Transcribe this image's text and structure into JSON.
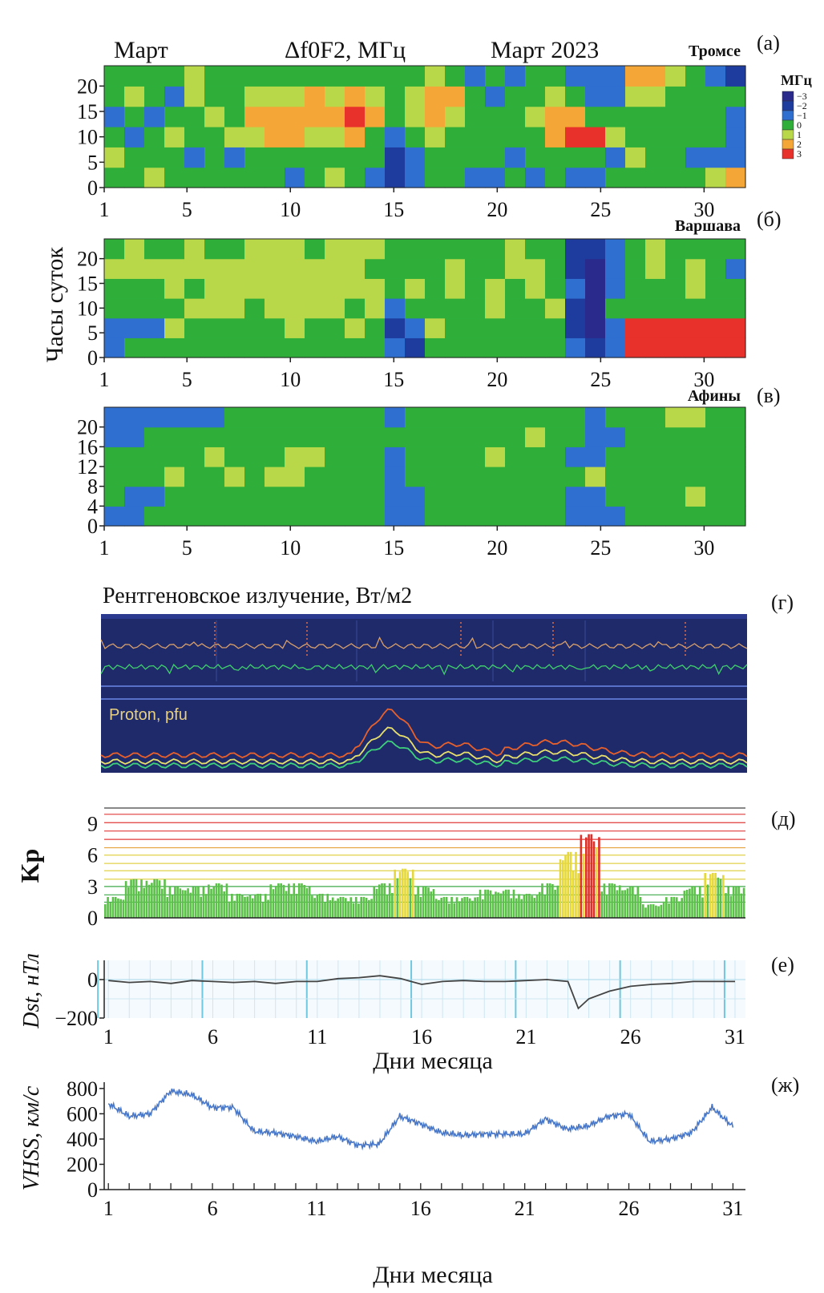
{
  "header": {
    "left": "Март",
    "center": "Δf0F2, МГц",
    "right": "Март 2023"
  },
  "colorbar": {
    "title": "МГц",
    "labels": [
      "−3",
      "−2",
      "−1",
      "0",
      "1",
      "2",
      "3"
    ],
    "colors": [
      "#2a2a8c",
      "#1e3c9e",
      "#2f6fd0",
      "#2fae3a",
      "#b8d84a",
      "#f4a636",
      "#e8312a"
    ]
  },
  "shared_ylabel": "Часы суток",
  "chart_data": [
    {
      "panel": "(а)",
      "station": "Тромсе",
      "type": "heatmap",
      "title": "Δf0F2, МГц",
      "x_ticks": [
        1,
        5,
        10,
        15,
        20,
        25,
        30
      ],
      "xlim": [
        1,
        32
      ],
      "y_ticks": [
        0,
        5,
        10,
        15,
        20
      ],
      "ylim": [
        0,
        24
      ],
      "value_range": [
        -3,
        3
      ],
      "rows_hours": [
        0,
        4,
        8,
        12,
        16,
        20
      ],
      "values_by_day_rows": [
        [
          0,
          1,
          0,
          -1,
          0,
          0
        ],
        [
          0,
          0,
          -1,
          0,
          1,
          0
        ],
        [
          1,
          0,
          0,
          -1,
          0,
          0
        ],
        [
          0,
          0,
          1,
          0,
          -1,
          0
        ],
        [
          0,
          -1,
          0,
          0,
          1,
          1
        ],
        [
          0,
          0,
          0,
          1,
          0,
          0
        ],
        [
          0,
          -1,
          1,
          0,
          0,
          0
        ],
        [
          0,
          0,
          1,
          2,
          1,
          0
        ],
        [
          0,
          0,
          2,
          2,
          1,
          0
        ],
        [
          -1,
          0,
          2,
          2,
          1,
          0
        ],
        [
          0,
          0,
          1,
          2,
          2,
          0
        ],
        [
          1,
          0,
          1,
          2,
          1,
          0
        ],
        [
          0,
          0,
          2,
          3,
          2,
          0
        ],
        [
          -1,
          0,
          0,
          2,
          1,
          0
        ],
        [
          -2,
          -2,
          -1,
          0,
          0,
          0
        ],
        [
          -1,
          -1,
          0,
          1,
          1,
          0
        ],
        [
          0,
          0,
          1,
          2,
          2,
          1
        ],
        [
          0,
          0,
          0,
          1,
          2,
          0
        ],
        [
          -1,
          0,
          0,
          0,
          0,
          -1
        ],
        [
          -1,
          0,
          0,
          0,
          -1,
          0
        ],
        [
          0,
          -1,
          0,
          0,
          0,
          -1
        ],
        [
          -1,
          0,
          0,
          1,
          0,
          0
        ],
        [
          0,
          0,
          2,
          2,
          1,
          0
        ],
        [
          -1,
          0,
          3,
          2,
          0,
          -1
        ],
        [
          -1,
          0,
          3,
          0,
          -1,
          -1
        ],
        [
          0,
          -1,
          1,
          0,
          -1,
          -1
        ],
        [
          0,
          1,
          0,
          0,
          1,
          2
        ],
        [
          0,
          0,
          0,
          0,
          1,
          2
        ],
        [
          0,
          0,
          0,
          0,
          0,
          1
        ],
        [
          0,
          -1,
          0,
          0,
          0,
          0
        ],
        [
          1,
          -1,
          0,
          0,
          0,
          -1
        ],
        [
          2,
          -1,
          -1,
          -1,
          0,
          -2
        ]
      ]
    },
    {
      "panel": "(б)",
      "station": "Варшава",
      "type": "heatmap",
      "x_ticks": [
        1,
        5,
        10,
        15,
        20,
        25,
        30
      ],
      "xlim": [
        1,
        32
      ],
      "y_ticks": [
        0,
        5,
        10,
        15,
        20
      ],
      "ylim": [
        0,
        24
      ],
      "value_range": [
        -3,
        3
      ],
      "rows_hours": [
        0,
        4,
        8,
        12,
        16,
        20
      ],
      "values_by_day_rows": [
        [
          -1,
          -1,
          0,
          0,
          1,
          0
        ],
        [
          0,
          -1,
          0,
          0,
          1,
          1
        ],
        [
          0,
          -1,
          0,
          0,
          1,
          0
        ],
        [
          0,
          1,
          0,
          1,
          1,
          0
        ],
        [
          0,
          0,
          1,
          0,
          1,
          1
        ],
        [
          0,
          0,
          1,
          1,
          1,
          0
        ],
        [
          0,
          0,
          1,
          1,
          1,
          0
        ],
        [
          0,
          0,
          0,
          1,
          1,
          1
        ],
        [
          0,
          0,
          1,
          1,
          1,
          1
        ],
        [
          0,
          1,
          1,
          1,
          1,
          1
        ],
        [
          0,
          0,
          1,
          1,
          1,
          0
        ],
        [
          0,
          0,
          1,
          1,
          1,
          1
        ],
        [
          0,
          1,
          0,
          1,
          1,
          1
        ],
        [
          0,
          0,
          1,
          1,
          0,
          1
        ],
        [
          -1,
          -2,
          -1,
          0,
          0,
          0
        ],
        [
          -2,
          -1,
          0,
          1,
          0,
          0
        ],
        [
          0,
          1,
          0,
          0,
          0,
          0
        ],
        [
          0,
          0,
          0,
          1,
          1,
          0
        ],
        [
          0,
          0,
          0,
          0,
          0,
          0
        ],
        [
          0,
          0,
          1,
          1,
          0,
          0
        ],
        [
          0,
          0,
          0,
          0,
          1,
          1
        ],
        [
          0,
          0,
          0,
          1,
          1,
          0
        ],
        [
          0,
          0,
          1,
          0,
          0,
          0
        ],
        [
          -1,
          -2,
          -2,
          -1,
          -2,
          -2
        ],
        [
          -2,
          -3,
          -3,
          -3,
          -3,
          -2
        ],
        [
          -1,
          -1,
          0,
          -1,
          -1,
          -1
        ],
        [
          3,
          3,
          0,
          0,
          0,
          0
        ],
        [
          3,
          3,
          0,
          0,
          1,
          1
        ],
        [
          3,
          3,
          0,
          0,
          0,
          0
        ],
        [
          3,
          3,
          0,
          1,
          1,
          0
        ],
        [
          3,
          3,
          0,
          0,
          0,
          0
        ],
        [
          3,
          3,
          0,
          0,
          -1,
          0
        ]
      ]
    },
    {
      "panel": "(в)",
      "station": "Афины",
      "type": "heatmap",
      "x_ticks": [
        1,
        5,
        10,
        15,
        20,
        25,
        30
      ],
      "xlim": [
        1,
        32
      ],
      "y_ticks": [
        0,
        4,
        8,
        12,
        16,
        20
      ],
      "ylim": [
        0,
        24
      ],
      "value_range": [
        -3,
        3
      ],
      "rows_hours": [
        0,
        4,
        8,
        12,
        16,
        20
      ],
      "values_by_day_rows": [
        [
          -1,
          0,
          0,
          0,
          -1,
          -1
        ],
        [
          -1,
          -1,
          0,
          0,
          -1,
          -1
        ],
        [
          0,
          -1,
          0,
          0,
          0,
          -1
        ],
        [
          0,
          0,
          1,
          0,
          0,
          -1
        ],
        [
          0,
          0,
          0,
          0,
          0,
          -1
        ],
        [
          0,
          0,
          0,
          1,
          0,
          -1
        ],
        [
          0,
          0,
          1,
          0,
          0,
          0
        ],
        [
          0,
          0,
          0,
          0,
          0,
          0
        ],
        [
          0,
          0,
          1,
          0,
          0,
          0
        ],
        [
          0,
          0,
          1,
          1,
          0,
          0
        ],
        [
          0,
          0,
          0,
          1,
          0,
          0
        ],
        [
          0,
          0,
          0,
          0,
          0,
          0
        ],
        [
          0,
          0,
          0,
          0,
          0,
          0
        ],
        [
          0,
          0,
          0,
          0,
          0,
          0
        ],
        [
          -1,
          -1,
          -1,
          -1,
          0,
          -1
        ],
        [
          -1,
          -1,
          0,
          0,
          0,
          0
        ],
        [
          0,
          0,
          0,
          0,
          0,
          0
        ],
        [
          0,
          0,
          0,
          0,
          0,
          0
        ],
        [
          0,
          0,
          0,
          0,
          0,
          0
        ],
        [
          0,
          0,
          0,
          1,
          0,
          0
        ],
        [
          0,
          0,
          0,
          0,
          0,
          0
        ],
        [
          0,
          0,
          0,
          0,
          1,
          0
        ],
        [
          0,
          0,
          0,
          0,
          0,
          0
        ],
        [
          -1,
          -1,
          0,
          -1,
          0,
          0
        ],
        [
          -1,
          -1,
          1,
          -1,
          -1,
          -1
        ],
        [
          -1,
          0,
          0,
          0,
          -1,
          0
        ],
        [
          0,
          0,
          0,
          0,
          0,
          0
        ],
        [
          0,
          0,
          0,
          0,
          0,
          0
        ],
        [
          0,
          0,
          0,
          0,
          0,
          1
        ],
        [
          0,
          1,
          0,
          0,
          0,
          1
        ],
        [
          0,
          0,
          0,
          0,
          0,
          0
        ],
        [
          0,
          0,
          0,
          0,
          0,
          0
        ]
      ]
    },
    {
      "panel": "(г)",
      "type": "line",
      "title": "Рентгеновское излучение, Вт/м2",
      "inset_label": "Proton, pfu"
    },
    {
      "panel": "(д)",
      "type": "bar",
      "ylabel": "Kp",
      "y_ticks": [
        0,
        3,
        6,
        9
      ],
      "ylim": [
        0,
        10.5
      ],
      "x": [
        1,
        2,
        3,
        4,
        5,
        6,
        7,
        8,
        9,
        10,
        11,
        12,
        13,
        14,
        15,
        16,
        17,
        18,
        19,
        20,
        21,
        22,
        23,
        24,
        25,
        26,
        27,
        28,
        29,
        30,
        31
      ],
      "values": [
        2,
        3.7,
        3.7,
        3,
        3,
        3.3,
        2.3,
        2.3,
        3.3,
        3.3,
        2.3,
        2,
        2,
        3.3,
        4.7,
        3,
        2,
        2,
        2.7,
        2.7,
        2.3,
        3.3,
        6.3,
        8,
        3.3,
        3,
        1.3,
        2,
        3,
        4.3,
        3
      ]
    },
    {
      "panel": "(е)",
      "type": "line",
      "ylabel": "Dst, нТл",
      "y_ticks": [
        -200,
        0
      ],
      "ylim": [
        -200,
        100
      ],
      "x_ticks": [
        1,
        6,
        11,
        16,
        21,
        26,
        31
      ],
      "xlabel": "Дни месяца",
      "x": [
        1,
        2,
        3,
        4,
        5,
        6,
        7,
        8,
        9,
        10,
        11,
        12,
        13,
        14,
        15,
        16,
        17,
        18,
        19,
        20,
        21,
        22,
        23,
        23.5,
        24,
        25,
        26,
        27,
        28,
        29,
        30,
        31
      ],
      "values": [
        -5,
        -15,
        -10,
        -20,
        -5,
        -10,
        -15,
        -10,
        -20,
        -10,
        -10,
        5,
        10,
        20,
        5,
        -25,
        -10,
        -5,
        -10,
        -10,
        -5,
        0,
        -10,
        -150,
        -100,
        -60,
        -35,
        -25,
        -20,
        -10,
        -10,
        -10
      ]
    },
    {
      "panel": "(ж)",
      "type": "line",
      "ylabel": "VHSS, км/с",
      "y_ticks": [
        0,
        200,
        400,
        600,
        800
      ],
      "ylim": [
        0,
        850
      ],
      "x_ticks": [
        1,
        6,
        11,
        16,
        21,
        26,
        31
      ],
      "xlabel": "Дни месяца",
      "x": [
        1,
        2,
        3,
        4,
        5,
        6,
        7,
        8,
        9,
        10,
        11,
        12,
        13,
        14,
        15,
        16,
        17,
        18,
        19,
        20,
        21,
        22,
        23,
        24,
        25,
        26,
        27,
        28,
        29,
        30,
        31
      ],
      "values": [
        680,
        580,
        600,
        780,
        750,
        650,
        650,
        460,
        450,
        420,
        380,
        420,
        350,
        360,
        580,
        520,
        450,
        430,
        440,
        440,
        440,
        560,
        480,
        500,
        580,
        600,
        380,
        400,
        450,
        650,
        500
      ]
    }
  ]
}
